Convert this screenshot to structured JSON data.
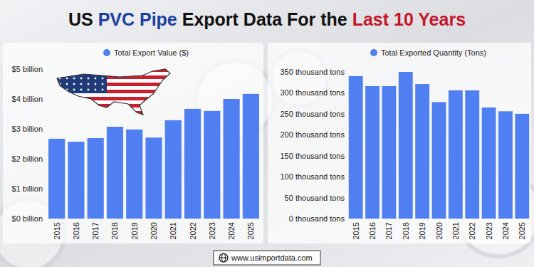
{
  "header": {
    "title_parts": [
      "US ",
      "PVC Pipe",
      " Export Data For the ",
      "Last 10 Years"
    ]
  },
  "footer": {
    "text": "www.usimportdata.com"
  },
  "chart_data": [
    {
      "type": "bar",
      "categories": [
        "2015",
        "2016",
        "2017",
        "2018",
        "2019",
        "2020",
        "2021",
        "2022",
        "2023",
        "2024",
        "2025"
      ],
      "series": [
        {
          "name": "Total Export Value ($)",
          "color": "#4f7ff0",
          "values": [
            2.67,
            2.57,
            2.69,
            3.07,
            2.98,
            2.71,
            3.29,
            3.67,
            3.6,
            4.0,
            4.17
          ]
        }
      ],
      "ylim": [
        0,
        5
      ],
      "yticks": [
        {
          "value": 0,
          "label": "$0 billion"
        },
        {
          "value": 1,
          "label": "$1 billion"
        },
        {
          "value": 2,
          "label": "$2 billion"
        },
        {
          "value": 3,
          "label": "$3 billion"
        },
        {
          "value": 4,
          "label": "$4 billion"
        },
        {
          "value": 5,
          "label": "$5 billion"
        }
      ],
      "grid": false,
      "legend": "top"
    },
    {
      "type": "bar",
      "categories": [
        "2015",
        "2016",
        "2017",
        "2018",
        "2019",
        "2020",
        "2021",
        "2022",
        "2023",
        "2024",
        "2025"
      ],
      "series": [
        {
          "name": "Total Exported Quantity (Tons)",
          "color": "#4f7ff0",
          "values": [
            340,
            316,
            316,
            350,
            321,
            278,
            306,
            306,
            265,
            256,
            250
          ]
        }
      ],
      "ylim": [
        0,
        350
      ],
      "yticks": [
        {
          "value": 0,
          "label": "0 thousand tons"
        },
        {
          "value": 50,
          "label": "50 thousand tons"
        },
        {
          "value": 100,
          "label": "100 thousand tons"
        },
        {
          "value": 150,
          "label": "150 thousand tons"
        },
        {
          "value": 200,
          "label": "200 thousand tons"
        },
        {
          "value": 250,
          "label": "250 thousand tons"
        },
        {
          "value": 300,
          "label": "300 thousand tons"
        },
        {
          "value": 350,
          "label": "350 thousand tons"
        }
      ],
      "grid": false,
      "legend": "top"
    }
  ]
}
